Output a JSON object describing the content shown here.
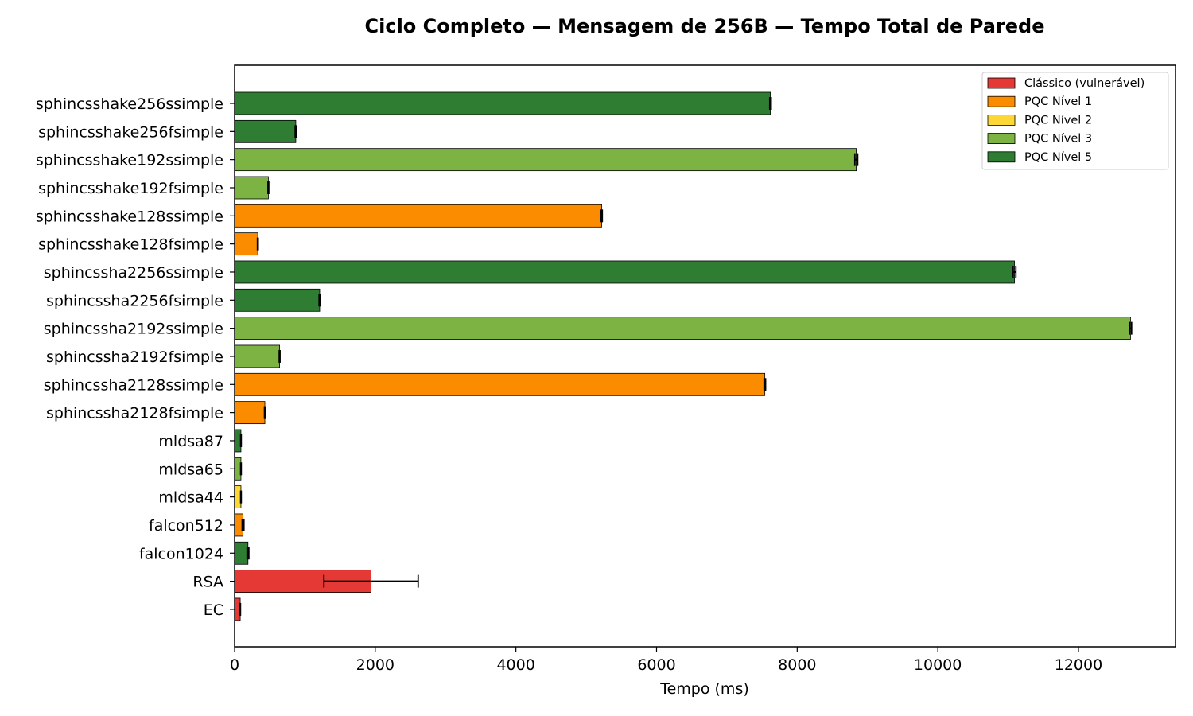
{
  "chart_data": {
    "type": "bar",
    "orientation": "horizontal",
    "title": "Ciclo Completo — Mensagem de 256B — Tempo Total de Parede",
    "xlabel": "Tempo (ms)",
    "ylabel": "",
    "xlim": [
      0,
      13380
    ],
    "xticks": [
      0,
      2000,
      4000,
      6000,
      8000,
      10000,
      12000
    ],
    "grid": false,
    "legend_position": "top-right",
    "legend": [
      {
        "label": "Clássico (vulnerável)",
        "color": "#e53935"
      },
      {
        "label": "PQC Nível 1",
        "color": "#fb8c00"
      },
      {
        "label": "PQC Nível 2",
        "color": "#fdd835"
      },
      {
        "label": "PQC Nível 3",
        "color": "#7cb342"
      },
      {
        "label": "PQC Nível 5",
        "color": "#2e7d32"
      }
    ],
    "bars": [
      {
        "label": "sphincsshake256ssimple",
        "value": 7620,
        "error": 10,
        "group": 4
      },
      {
        "label": "sphincsshake256fsimple",
        "value": 870,
        "error": 8,
        "group": 4
      },
      {
        "label": "sphincsshake192ssimple",
        "value": 8840,
        "error": 20,
        "group": 3
      },
      {
        "label": "sphincsshake192fsimple",
        "value": 480,
        "error": 5,
        "group": 3
      },
      {
        "label": "sphincsshake128ssimple",
        "value": 5220,
        "error": 8,
        "group": 1
      },
      {
        "label": "sphincsshake128fsimple",
        "value": 330,
        "error": 5,
        "group": 1
      },
      {
        "label": "sphincssha2256ssimple",
        "value": 11090,
        "error": 20,
        "group": 4
      },
      {
        "label": "sphincssha2256fsimple",
        "value": 1210,
        "error": 8,
        "group": 4
      },
      {
        "label": "sphincssha2192ssimple",
        "value": 12740,
        "error": 15,
        "group": 3
      },
      {
        "label": "sphincssha2192fsimple",
        "value": 640,
        "error": 5,
        "group": 3
      },
      {
        "label": "sphincssha2128ssimple",
        "value": 7540,
        "error": 10,
        "group": 1
      },
      {
        "label": "sphincssha2128fsimple",
        "value": 430,
        "error": 5,
        "group": 1
      },
      {
        "label": "mldsa87",
        "value": 90,
        "error": 4,
        "group": 4
      },
      {
        "label": "mldsa65",
        "value": 90,
        "error": 4,
        "group": 3
      },
      {
        "label": "mldsa44",
        "value": 90,
        "error": 4,
        "group": 2
      },
      {
        "label": "falcon512",
        "value": 120,
        "error": 12,
        "group": 1
      },
      {
        "label": "falcon1024",
        "value": 190,
        "error": 12,
        "group": 4
      },
      {
        "label": "RSA",
        "value": 1940,
        "error": 670,
        "group": 0
      },
      {
        "label": "EC",
        "value": 80,
        "error": 3,
        "group": 0
      }
    ]
  }
}
